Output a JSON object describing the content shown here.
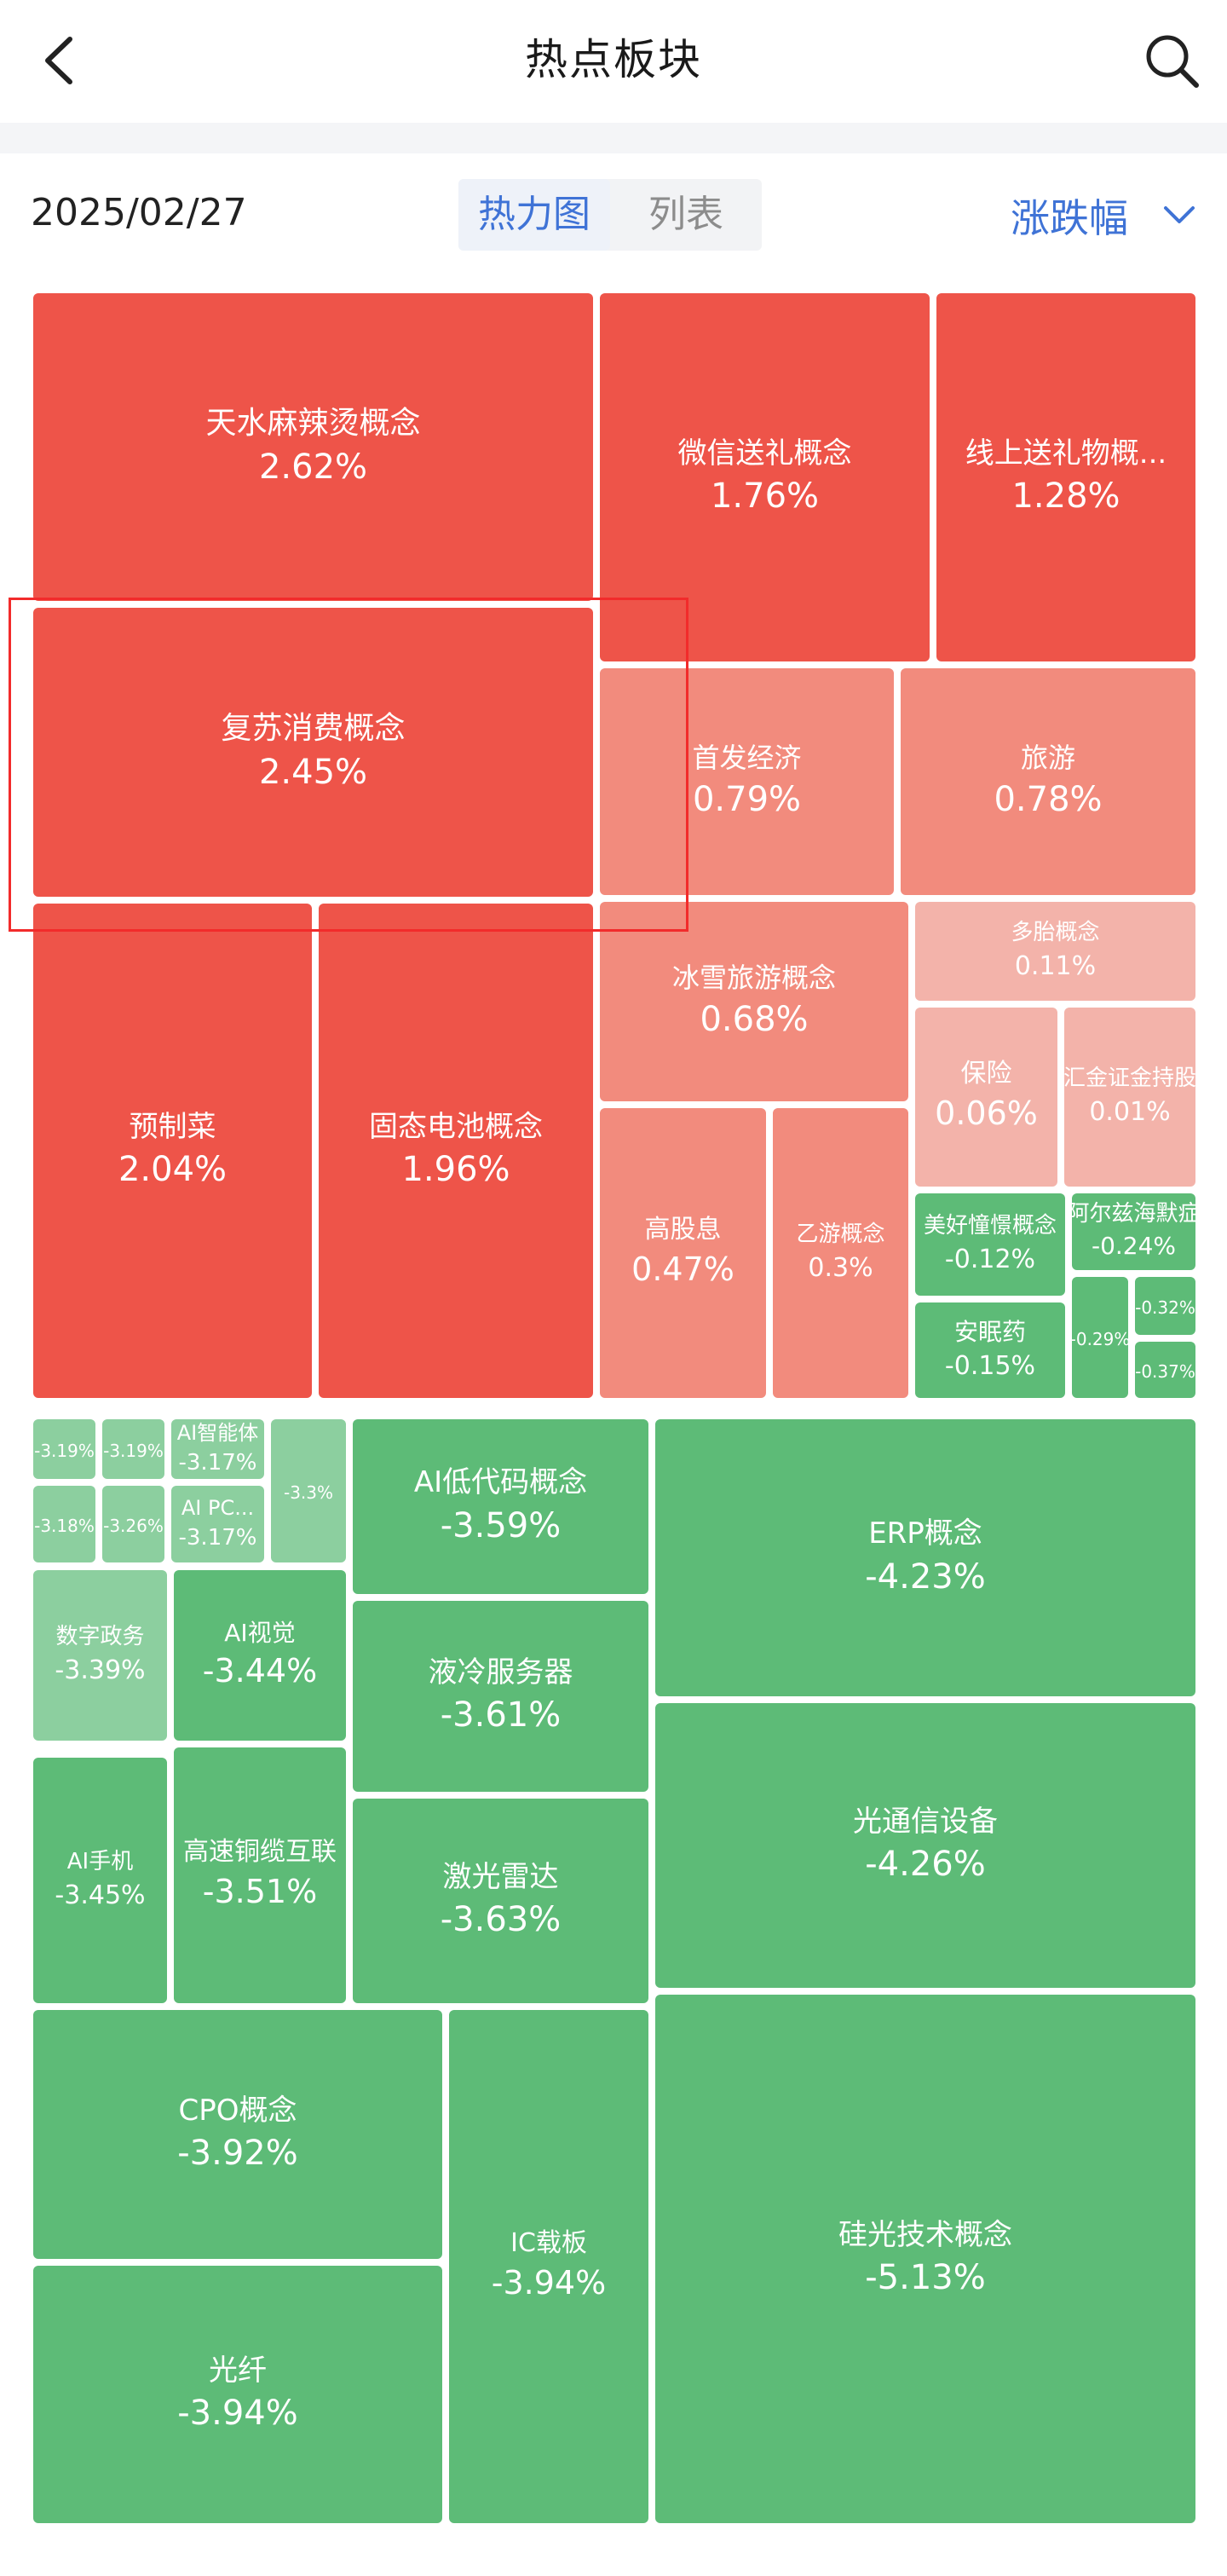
{
  "header": {
    "title": "热点板块",
    "back_icon": "chevron-left-icon",
    "search_icon": "search-icon"
  },
  "toolbar": {
    "date": "2025/02/27",
    "tabs": [
      {
        "label": "热力图",
        "active": true
      },
      {
        "label": "列表",
        "active": false
      }
    ],
    "sort_label": "涨跌幅",
    "sort_icon": "chevron-down-icon"
  },
  "colors": {
    "strong_red": "#ee5449",
    "light_red": "#f28b7d",
    "pale_red": "#f3b3aa",
    "green": "#5dbb77",
    "light_green": "#8ccf9f",
    "accent_blue": "#3f73d6"
  },
  "sectors": [
    {
      "name": "天水麻辣烫概念",
      "change": "2.62%"
    },
    {
      "name": "微信送礼概念",
      "change": "1.76%"
    },
    {
      "name": "线上送礼物概...",
      "change": "1.28%"
    },
    {
      "name": "复苏消费概念",
      "change": "2.45%"
    },
    {
      "name": "首发经济",
      "change": "0.79%"
    },
    {
      "name": "旅游",
      "change": "0.78%"
    },
    {
      "name": "冰雪旅游概念",
      "change": "0.68%"
    },
    {
      "name": "多胎概念",
      "change": "0.11%"
    },
    {
      "name": "保险",
      "change": "0.06%"
    },
    {
      "name": "汇金证金持股",
      "change": "0.01%"
    },
    {
      "name": "预制菜",
      "change": "2.04%"
    },
    {
      "name": "固态电池概念",
      "change": "1.96%"
    },
    {
      "name": "高股息",
      "change": "0.47%"
    },
    {
      "name": "乙游概念",
      "change": "0.3%"
    },
    {
      "name": "美好憧憬概念",
      "change": "-0.12%"
    },
    {
      "name": "阿尔兹海默症",
      "change": "-0.24%"
    },
    {
      "name": "安眠药",
      "change": "-0.15%"
    },
    {
      "name": "",
      "change": "-0.29%"
    },
    {
      "name": "",
      "change": "-0.32%"
    },
    {
      "name": "",
      "change": "-0.37%"
    },
    {
      "name": "",
      "change": "-3.19%"
    },
    {
      "name": "",
      "change": "-3.19%"
    },
    {
      "name": "AI智能体",
      "change": "-3.17%"
    },
    {
      "name": "",
      "change": "-3.3%"
    },
    {
      "name": "",
      "change": "-3.18%"
    },
    {
      "name": "",
      "change": "-3.26%"
    },
    {
      "name": "AI PC...",
      "change": "-3.17%"
    },
    {
      "name": "AI低代码概念",
      "change": "-3.59%"
    },
    {
      "name": "ERP概念",
      "change": "-4.23%"
    },
    {
      "name": "数字政务",
      "change": "-3.39%"
    },
    {
      "name": "AI视觉",
      "change": "-3.44%"
    },
    {
      "name": "液冷服务器",
      "change": "-3.61%"
    },
    {
      "name": "光通信设备",
      "change": "-4.26%"
    },
    {
      "name": "AI手机",
      "change": "-3.45%"
    },
    {
      "name": "高速铜缆互联",
      "change": "-3.51%"
    },
    {
      "name": "激光雷达",
      "change": "-3.63%"
    },
    {
      "name": "CPO概念",
      "change": "-3.92%"
    },
    {
      "name": "IC载板",
      "change": "-3.94%"
    },
    {
      "name": "硅光技术概念",
      "change": "-5.13%"
    },
    {
      "name": "光纤",
      "change": "-3.94%"
    }
  ]
}
